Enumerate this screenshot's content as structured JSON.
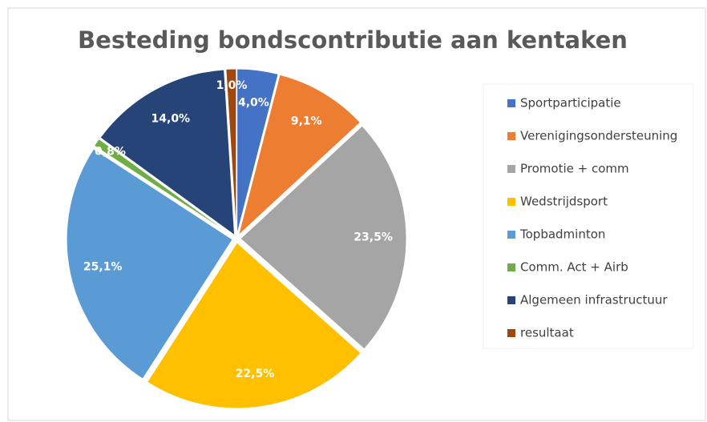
{
  "chart_data": {
    "type": "pie",
    "title": "Besteding bondscontributie aan kentaken",
    "categories": [
      "Sportparticipatie",
      "Verenigingsondersteuning",
      "Promotie + comm",
      "Wedstrijdsport",
      "Topbadminton",
      "Comm. Act + Airb",
      "Algemeen infrastructuur",
      "resultaat"
    ],
    "values": [
      4.0,
      9.1,
      23.5,
      22.5,
      25.1,
      0.8,
      14.0,
      1.0
    ],
    "value_labels": [
      "4,0%",
      "9,1%",
      "23,5%",
      "22,5%",
      "25,1%",
      "0,8%",
      "14,0%",
      "1,0%"
    ],
    "colors": [
      "#4472c4",
      "#ed7d31",
      "#a5a5a5",
      "#ffc000",
      "#5b9bd5",
      "#70ad47",
      "#264478",
      "#9e480e"
    ],
    "legend": "right"
  }
}
